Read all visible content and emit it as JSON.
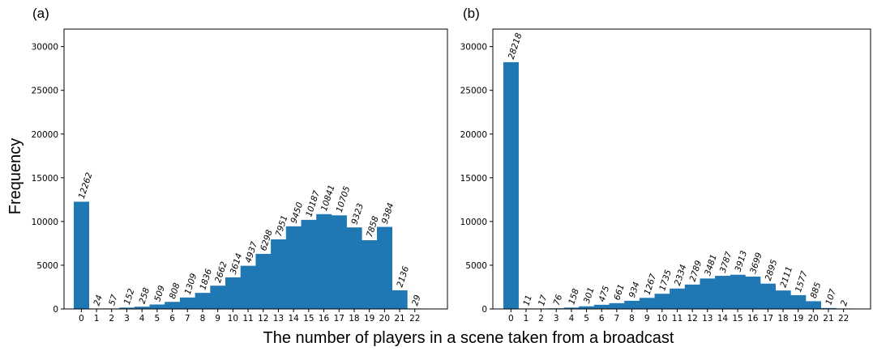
{
  "figure": {
    "ylabel": "Frequency",
    "xlabel": "The number of players in a scene taken from a broadcast"
  },
  "chart_data": [
    {
      "type": "bar",
      "panel_label": "(a)",
      "categories": [
        "0",
        "1",
        "2",
        "3",
        "4",
        "5",
        "6",
        "7",
        "8",
        "9",
        "10",
        "11",
        "12",
        "13",
        "14",
        "15",
        "16",
        "17",
        "18",
        "19",
        "20",
        "21",
        "22"
      ],
      "values": [
        12262,
        24,
        57,
        152,
        258,
        509,
        808,
        1309,
        1836,
        2662,
        3614,
        4937,
        6298,
        7951,
        9450,
        10187,
        10841,
        10705,
        9323,
        7858,
        9384,
        2136,
        29
      ],
      "ylim": [
        0,
        32000
      ],
      "yticks": [
        0,
        5000,
        10000,
        15000,
        20000,
        25000,
        30000
      ],
      "bar_color": "#1f77b4",
      "grid": false
    },
    {
      "type": "bar",
      "panel_label": "(b)",
      "categories": [
        "0",
        "1",
        "2",
        "3",
        "4",
        "5",
        "6",
        "7",
        "8",
        "9",
        "10",
        "11",
        "12",
        "13",
        "14",
        "15",
        "16",
        "17",
        "18",
        "19",
        "20",
        "21",
        "22"
      ],
      "values": [
        28218,
        11,
        17,
        76,
        158,
        301,
        475,
        661,
        934,
        1267,
        1735,
        2334,
        2789,
        3481,
        3787,
        3913,
        3699,
        2895,
        2111,
        1577,
        885,
        107,
        2
      ],
      "ylim": [
        0,
        32000
      ],
      "yticks": [
        0,
        5000,
        10000,
        15000,
        20000,
        25000,
        30000
      ],
      "bar_color": "#1f77b4",
      "grid": false
    }
  ]
}
